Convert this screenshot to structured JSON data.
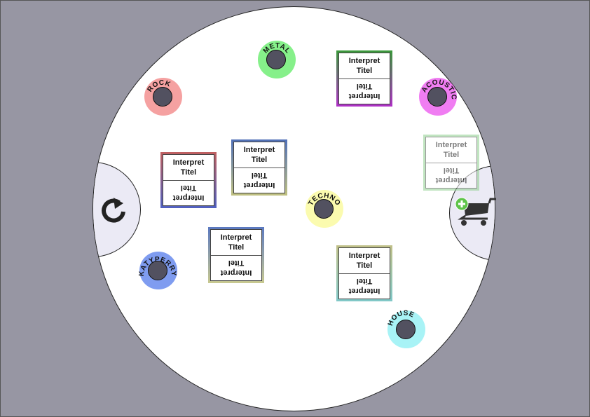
{
  "genres": [
    {
      "id": "metal",
      "label": "METAL",
      "color": "#86f08a"
    },
    {
      "id": "rock",
      "label": "ROCK",
      "color": "#f5a1a1"
    },
    {
      "id": "acoustic",
      "label": "ACOUSTIC",
      "color": "#f07df2"
    },
    {
      "id": "techno",
      "label": "TECHNO",
      "color": "#fbfbaf"
    },
    {
      "id": "katyperry",
      "label": "KATYPERRY",
      "color": "#7f9cf0"
    },
    {
      "id": "house",
      "label": "HOUSE",
      "color": "#a8f3f6"
    }
  ],
  "cards": [
    {
      "id": "card1",
      "artist": "Interpret",
      "title": "Titel",
      "border_top": "#3a9a3a",
      "border_bottom": "#b030c8"
    },
    {
      "id": "card2",
      "artist": "Interpret",
      "title": "Titel",
      "border_top": "#c06060",
      "border_bottom": "#5060c0"
    },
    {
      "id": "card3",
      "artist": "Interpret",
      "title": "Titel",
      "border_top": "#5070b8",
      "border_bottom": "#c0c080"
    },
    {
      "id": "card4",
      "artist": "Interpret",
      "title": "Titel",
      "border_top": "#5a78c0",
      "border_bottom": "#c8c890"
    },
    {
      "id": "card5",
      "artist": "Interpret",
      "title": "Titel",
      "border_top": "#c0c088",
      "border_bottom": "#80c8c8"
    },
    {
      "id": "card6",
      "artist": "Interpret",
      "title": "Titel",
      "border_top": "#8fd08f",
      "border_bottom": "#8fd08f",
      "faded": true
    }
  ],
  "icons": {
    "refresh": "refresh-icon",
    "cart": "add-to-cart-icon"
  },
  "colors": {
    "background": "#9796a3",
    "table": "#ffffff",
    "side_tab": "#ebeaf5",
    "knob": "#525160"
  }
}
